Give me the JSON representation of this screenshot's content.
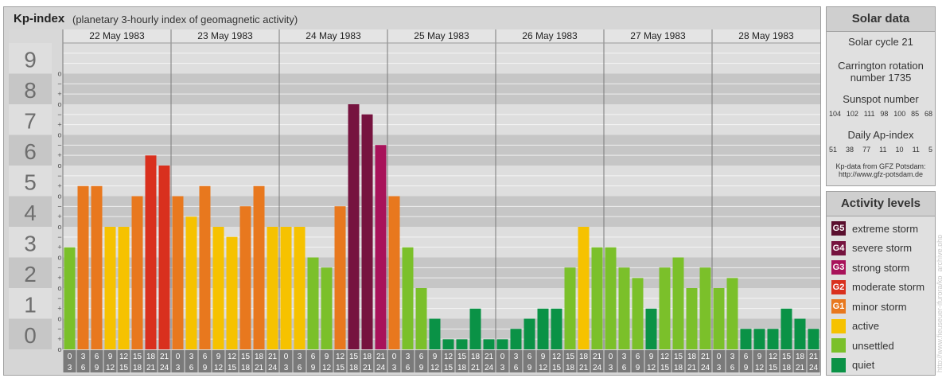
{
  "title": {
    "main": "Kp-index",
    "sub": "(planetary 3-hourly index of geomagnetic activity)"
  },
  "solar": {
    "heading": "Solar data",
    "cycle": "Solar cycle 21",
    "carrington_line1": "Carrington rotation",
    "carrington_line2": "number 1735",
    "sunspot_label": "Sunspot number",
    "sunspot_values": [
      "104",
      "102",
      "111",
      "98",
      "100",
      "85",
      "68"
    ],
    "ap_label": "Daily Ap-index",
    "ap_values": [
      "51",
      "38",
      "77",
      "11",
      "10",
      "11",
      "5"
    ],
    "source_line1": "Kp-data from GFZ Potsdam:",
    "source_line2": "http://www.gfz-potsdam.de"
  },
  "activity": {
    "heading": "Activity levels",
    "items": [
      {
        "code": "G5",
        "label": "extreme storm",
        "color": "#5a0f2e"
      },
      {
        "code": "G4",
        "label": "severe storm",
        "color": "#76133f"
      },
      {
        "code": "G3",
        "label": "strong storm",
        "color": "#a8125a"
      },
      {
        "code": "G2",
        "label": "moderate storm",
        "color": "#d9301e"
      },
      {
        "code": "G1",
        "label": "minor storm",
        "color": "#e8781e"
      },
      {
        "code": "",
        "label": "active",
        "color": "#f6c200"
      },
      {
        "code": "",
        "label": "unsettled",
        "color": "#7bc02a"
      },
      {
        "code": "",
        "label": "quiet",
        "color": "#0a9246"
      }
    ]
  },
  "credit": "http://www.fieuseuer-jfurora/kp_archive.php",
  "chart_data": {
    "type": "bar",
    "title": "Kp-index",
    "subtitle": "(planetary 3-hourly index of geomagnetic activity)",
    "ylim": [
      0,
      9
    ],
    "y_ticks": [
      "0",
      "1",
      "2",
      "3",
      "4",
      "5",
      "6",
      "7",
      "8",
      "9"
    ],
    "sub_ticks": [
      "−",
      "o",
      "+"
    ],
    "days": [
      "22 May 1983",
      "23 May 1983",
      "24 May 1983",
      "25 May 1983",
      "26 May 1983",
      "27 May 1983",
      "28 May 1983"
    ],
    "hour_starts": [
      "0",
      "3",
      "6",
      "9",
      "12",
      "15",
      "18",
      "21"
    ],
    "hour_ends": [
      "3",
      "6",
      "9",
      "12",
      "15",
      "18",
      "21",
      "24"
    ],
    "values": [
      [
        3.33,
        5.33,
        5.33,
        4.0,
        4.0,
        5.0,
        6.33,
        6.0
      ],
      [
        5.0,
        4.33,
        5.33,
        4.0,
        3.67,
        4.67,
        5.33,
        4.0
      ],
      [
        4.0,
        4.0,
        3.0,
        2.67,
        4.67,
        8.0,
        7.67,
        6.67
      ],
      [
        5.0,
        3.33,
        2.0,
        1.0,
        0.33,
        0.33,
        1.33,
        0.33
      ],
      [
        0.33,
        0.67,
        1.0,
        1.33,
        1.33,
        2.67,
        4.0,
        3.33
      ],
      [
        3.33,
        2.67,
        2.33,
        1.33,
        2.67,
        3.0,
        2.0,
        2.67
      ],
      [
        2.0,
        2.33,
        0.67,
        0.67,
        0.67,
        1.33,
        1.0,
        0.67
      ]
    ],
    "grid": true
  }
}
